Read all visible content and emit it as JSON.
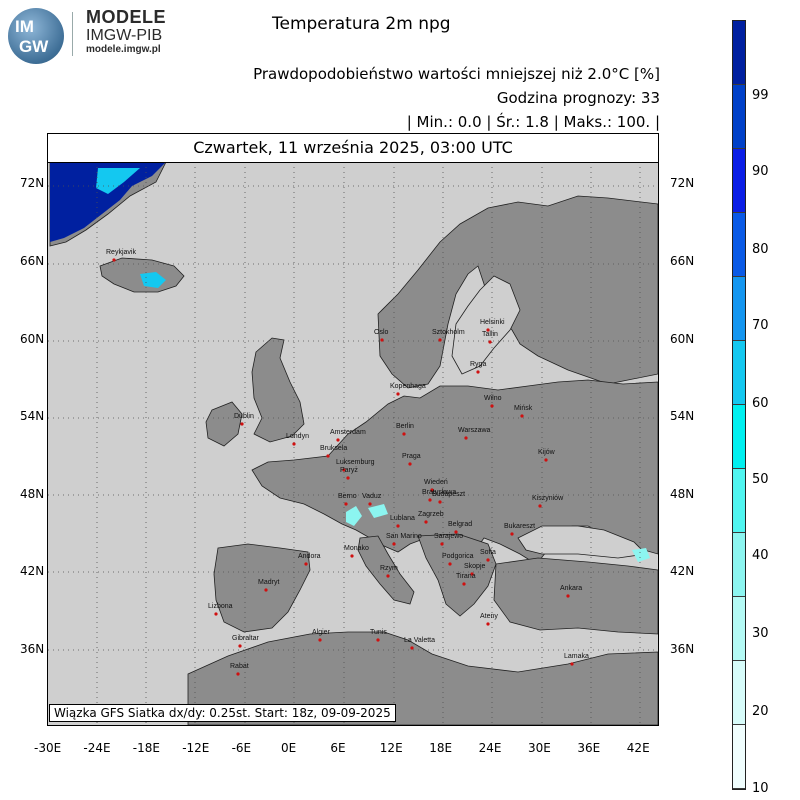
{
  "logo": {
    "badge_top": "IM",
    "badge_bottom": "GW",
    "name": "MODELE",
    "sub": "IMGW-PIB",
    "url": "modele.imgw.pl"
  },
  "header": {
    "title": "Temperatura 2m npg",
    "line1": "Prawdopodobieństwo wartości mniejszej niż 2.0°C [%]",
    "line2": "Godzina prognozy: 33",
    "line3": "| Min.:     0.0 | Śr.:      1.8 | Maks.:     100. |"
  },
  "map": {
    "date_label": "Czwartek, 11 września 2025, 03:00 UTC",
    "footer_note": "Wiązka GFS Siatka dx/dy: 0.25st. Start: 18z, 09-09-2025",
    "lat_labels": [
      "72N",
      "66N",
      "60N",
      "54N",
      "48N",
      "42N",
      "36N"
    ],
    "lon_labels": [
      "-30E",
      "-24E",
      "-18E",
      "-12E",
      "-6E",
      "0E",
      "6E",
      "12E",
      "18E",
      "24E",
      "30E",
      "36E",
      "42E"
    ],
    "cities": [
      {
        "name": "Reykjavik"
      },
      {
        "name": "Oslo"
      },
      {
        "name": "Sztokholm"
      },
      {
        "name": "Helsinki"
      },
      {
        "name": "Tallin"
      },
      {
        "name": "Ryga"
      },
      {
        "name": "Kopenhaga"
      },
      {
        "name": "Wilno"
      },
      {
        "name": "Mińsk"
      },
      {
        "name": "Dublin"
      },
      {
        "name": "Amsterdam"
      },
      {
        "name": "Berlin"
      },
      {
        "name": "Warszawa"
      },
      {
        "name": "Londyn"
      },
      {
        "name": "Bruksela"
      },
      {
        "name": "Luksemburg"
      },
      {
        "name": "Praga"
      },
      {
        "name": "Kijów"
      },
      {
        "name": "Paryż"
      },
      {
        "name": "Wiedeń"
      },
      {
        "name": "Bratysława"
      },
      {
        "name": "Budapeszt"
      },
      {
        "name": "Kiszyniów"
      },
      {
        "name": "Berno"
      },
      {
        "name": "Vaduz"
      },
      {
        "name": "Zagrzeb"
      },
      {
        "name": "Lublana"
      },
      {
        "name": "Belgrad"
      },
      {
        "name": "Bukareszt"
      },
      {
        "name": "Sarajewo"
      },
      {
        "name": "Monako"
      },
      {
        "name": "San Marino"
      },
      {
        "name": "Podgorica"
      },
      {
        "name": "Sofia"
      },
      {
        "name": "Andora"
      },
      {
        "name": "Skopje"
      },
      {
        "name": "Rzym"
      },
      {
        "name": "Tirana"
      },
      {
        "name": "Madryt"
      },
      {
        "name": "Ankara"
      },
      {
        "name": "Lizbona"
      },
      {
        "name": "Ateny"
      },
      {
        "name": "Gibraltar"
      },
      {
        "name": "Algier"
      },
      {
        "name": "Tunis"
      },
      {
        "name": "La Valetta"
      },
      {
        "name": "Rabat"
      },
      {
        "name": "Lamaka"
      }
    ]
  },
  "scale": {
    "labels": [
      "99",
      "90",
      "80",
      "70",
      "60",
      "50",
      "40",
      "30",
      "20",
      "10"
    ],
    "colors": [
      "#0020a0",
      "#0040c8",
      "#0a1ee6",
      "#0a5ae6",
      "#1496f0",
      "#14c8f0",
      "#00f0f0",
      "#50f5f0",
      "#8cf5f0",
      "#b4faf5",
      "#d7fcfa",
      "#f0fefe"
    ]
  }
}
